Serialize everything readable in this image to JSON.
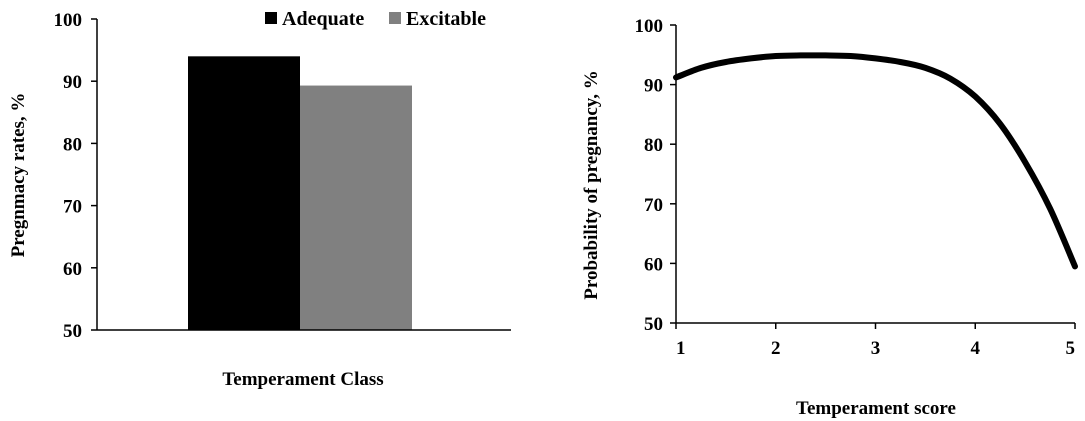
{
  "chart_data": [
    {
      "type": "bar",
      "title": "",
      "xlabel": "Temperament Class",
      "ylabel": "Pregnmacy rates, %",
      "ylim": [
        50,
        100
      ],
      "yticks": [
        "50",
        "60",
        "70",
        "80",
        "90",
        "100"
      ],
      "categories": [
        ""
      ],
      "legend_position": "top-right",
      "grid": false,
      "series": [
        {
          "name": "Adequate",
          "values": [
            94
          ],
          "color": "#000000"
        },
        {
          "name": "Excitable",
          "values": [
            89.3
          ],
          "color": "#808080"
        }
      ]
    },
    {
      "type": "line",
      "title": "",
      "xlabel": "Temperament score",
      "ylabel": "Probability of pregnancy, %",
      "xlim": [
        1,
        5
      ],
      "ylim": [
        50,
        100
      ],
      "xticks": [
        "1",
        "2",
        "3",
        "4",
        "5"
      ],
      "yticks": [
        "50",
        "60",
        "70",
        "80",
        "90",
        "100"
      ],
      "grid": false,
      "series": [
        {
          "color": "#000000",
          "x": [
            1.0,
            1.25,
            1.5,
            1.75,
            2.0,
            2.25,
            2.5,
            2.75,
            3.0,
            3.25,
            3.5,
            3.75,
            4.0,
            4.25,
            4.5,
            4.75,
            5.0
          ],
          "y": [
            91.2,
            92.8,
            93.8,
            94.4,
            94.8,
            94.9,
            94.9,
            94.8,
            94.4,
            93.8,
            92.8,
            91.0,
            88.0,
            83.4,
            77.0,
            69.2,
            59.5
          ]
        }
      ]
    }
  ]
}
